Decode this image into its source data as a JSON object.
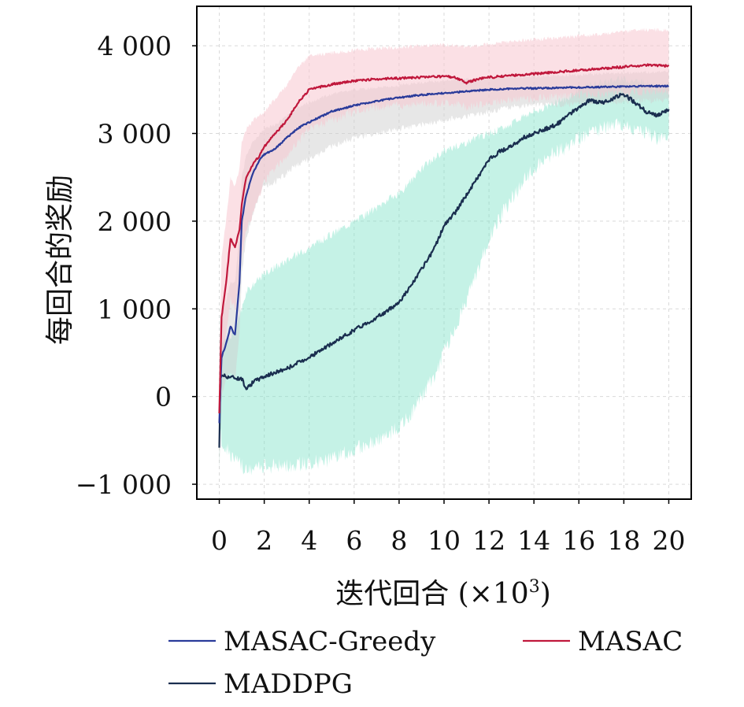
{
  "chart_data": {
    "type": "line",
    "xlabel_main": "迭代回合 (×10",
    "xlabel_exp": "3",
    "xlabel_close": ")",
    "ylabel": "每回合的奖励",
    "xlim": [
      -1,
      21
    ],
    "ylim": [
      -1170,
      4450
    ],
    "xticks": [
      0,
      2,
      4,
      6,
      8,
      10,
      12,
      14,
      16,
      18,
      20
    ],
    "xtick_labels": [
      "0",
      "2",
      "4",
      "6",
      "8",
      "10",
      "12",
      "14",
      "16",
      "18",
      "20"
    ],
    "yticks": [
      -1000,
      0,
      1000,
      2000,
      3000,
      4000
    ],
    "ytick_labels": [
      "−1 000",
      "0",
      "1 000",
      "2 000",
      "3 000",
      "4 000"
    ],
    "grid": true,
    "legend_position": "bottom",
    "series": [
      {
        "name": "MADDPG",
        "color": "#1a2e4f",
        "band_color": "#7fe3c8",
        "x": [
          0,
          0.05,
          0.1,
          0.3,
          0.6,
          1.0,
          1.2,
          1.6,
          2,
          3,
          4,
          5,
          6,
          7,
          7.5,
          8,
          8.5,
          9,
          9.5,
          10,
          10.5,
          11,
          11.5,
          12,
          12.5,
          13,
          13.5,
          14,
          14.5,
          15,
          15.5,
          16,
          16.5,
          17,
          17.5,
          18,
          18.5,
          19,
          19.5,
          20
        ],
        "y": [
          -600,
          200,
          250,
          230,
          220,
          200,
          100,
          180,
          230,
          320,
          450,
          600,
          760,
          900,
          980,
          1080,
          1250,
          1450,
          1650,
          1950,
          2100,
          2300,
          2500,
          2700,
          2800,
          2850,
          2950,
          3000,
          3050,
          3100,
          3200,
          3300,
          3380,
          3350,
          3400,
          3450,
          3350,
          3250,
          3200,
          3270
        ],
        "lower": [
          -900,
          -300,
          -500,
          -600,
          -700,
          -800,
          -850,
          -820,
          -800,
          -780,
          -760,
          -720,
          -600,
          -500,
          -450,
          -350,
          -200,
          0,
          200,
          500,
          800,
          1100,
          1450,
          1800,
          2050,
          2250,
          2450,
          2600,
          2700,
          2800,
          2850,
          2950,
          3000,
          3050,
          3100,
          3100,
          3050,
          3000,
          2950,
          3000
        ],
        "upper": [
          -200,
          500,
          600,
          650,
          700,
          1000,
          1200,
          1300,
          1400,
          1550,
          1700,
          1850,
          2000,
          2150,
          2250,
          2300,
          2450,
          2600,
          2700,
          2800,
          2850,
          2900,
          2950,
          3000,
          3050,
          3100,
          3200,
          3250,
          3300,
          3350,
          3400,
          3500,
          3550,
          3580,
          3600,
          3620,
          3600,
          3580,
          3520,
          3550
        ]
      },
      {
        "name": "MASAC-Greedy",
        "color": "#2a3b9a",
        "band_color": "#cfcfcf",
        "x": [
          0,
          0.1,
          0.3,
          0.5,
          0.7,
          0.9,
          1.0,
          1.2,
          1.5,
          1.8,
          2,
          2.5,
          3,
          3.5,
          4,
          5,
          6,
          7,
          8,
          9,
          10,
          11,
          12,
          13,
          14,
          15,
          16,
          17,
          18,
          19,
          20
        ],
        "y": [
          -300,
          450,
          600,
          800,
          700,
          1300,
          2000,
          2300,
          2550,
          2700,
          2760,
          2830,
          2950,
          3060,
          3130,
          3250,
          3320,
          3370,
          3410,
          3440,
          3460,
          3480,
          3500,
          3510,
          3515,
          3520,
          3525,
          3530,
          3535,
          3540,
          3540
        ],
        "lower": [
          -900,
          0,
          200,
          300,
          200,
          700,
          1400,
          1800,
          2100,
          2300,
          2400,
          2450,
          2550,
          2650,
          2700,
          2850,
          2950,
          3000,
          3050,
          3100,
          3150,
          3200,
          3250,
          3300,
          3320,
          3330,
          3340,
          3350,
          3360,
          3370,
          3380
        ],
        "upper": [
          100,
          900,
          1100,
          1300,
          1300,
          1900,
          2500,
          2750,
          2900,
          3000,
          3050,
          3100,
          3200,
          3300,
          3350,
          3450,
          3500,
          3520,
          3550,
          3580,
          3600,
          3620,
          3630,
          3640,
          3650,
          3660,
          3670,
          3680,
          3690,
          3700,
          3700
        ]
      },
      {
        "name": "MASAC",
        "color": "#c0183c",
        "band_color": "#f7c6cf",
        "x": [
          0,
          0.1,
          0.3,
          0.5,
          0.7,
          0.9,
          1.0,
          1.2,
          1.5,
          1.8,
          2,
          2.5,
          3,
          3.5,
          4,
          5,
          6,
          7,
          8,
          9,
          10,
          10.5,
          11,
          11.5,
          12,
          13,
          14,
          15,
          16,
          17,
          18,
          19,
          20
        ],
        "y": [
          -200,
          900,
          1300,
          1800,
          1700,
          1900,
          2200,
          2500,
          2650,
          2750,
          2850,
          3000,
          3150,
          3350,
          3500,
          3560,
          3600,
          3620,
          3630,
          3640,
          3650,
          3640,
          3580,
          3620,
          3640,
          3660,
          3680,
          3700,
          3720,
          3740,
          3760,
          3780,
          3770
        ],
        "lower": [
          -700,
          300,
          700,
          1100,
          1000,
          1300,
          1600,
          1900,
          2100,
          2300,
          2450,
          2600,
          2750,
          2900,
          3050,
          3150,
          3250,
          3300,
          3320,
          3340,
          3350,
          3340,
          3300,
          3330,
          3350,
          3380,
          3400,
          3420,
          3440,
          3450,
          3470,
          3480,
          3480
        ],
        "upper": [
          300,
          1600,
          2000,
          2500,
          2400,
          2600,
          2900,
          3050,
          3150,
          3200,
          3250,
          3400,
          3550,
          3750,
          3880,
          3920,
          3950,
          3970,
          3980,
          4000,
          4010,
          4000,
          3980,
          4000,
          4020,
          4050,
          4070,
          4090,
          4110,
          4130,
          4160,
          4180,
          4180
        ]
      }
    ]
  }
}
